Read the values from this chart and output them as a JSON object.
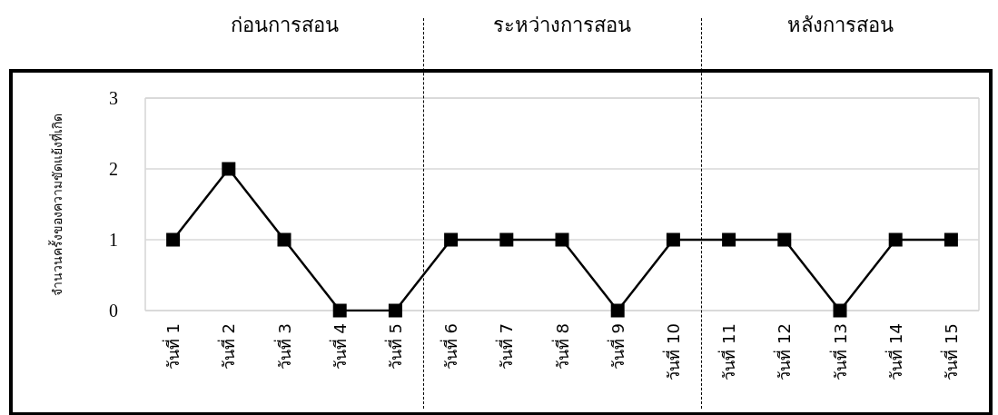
{
  "chart_data": {
    "type": "line",
    "ylabel": "จำนวนครั้งของความขัดแย้งที่เกิด",
    "categories": [
      "วันที่ 1",
      "วันที่ 2",
      "วันที่ 3",
      "วันที่ 4",
      "วันที่ 5",
      "วันที่ 6",
      "วันที่ 7",
      "วันที่ 8",
      "วันที่ 9",
      "วันที่ 10",
      "วันที่ 11",
      "วันที่ 12",
      "วันที่ 13",
      "วันที่ 14",
      "วันที่ 15"
    ],
    "series": [
      {
        "color": "#000000",
        "values": [
          1,
          2,
          1,
          0,
          0,
          1,
          1,
          1,
          0,
          1,
          1,
          1,
          0,
          1,
          1
        ]
      }
    ],
    "ylim": [
      0,
      3
    ],
    "yticks": [
      0,
      1,
      2,
      3
    ],
    "grid": "y",
    "marker": "square",
    "line_style": "solid",
    "annotations": [
      "ก่อนการสอน",
      "ระหว่างการสอน",
      "หลังการสอน"
    ]
  }
}
